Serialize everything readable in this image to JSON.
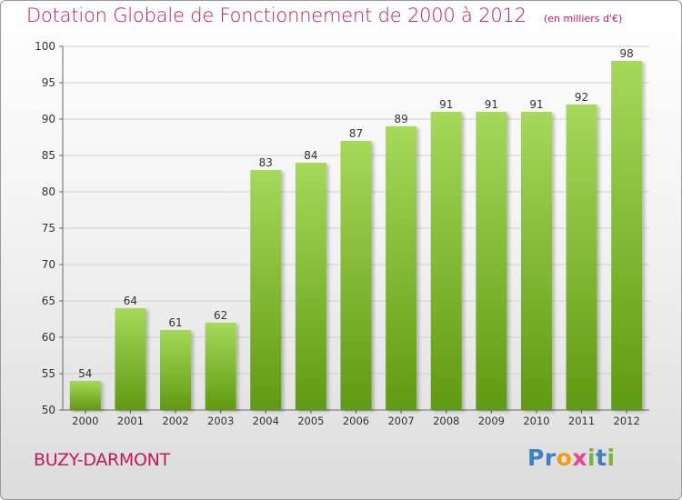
{
  "title": "Dotation Globale de Fonctionnement de 2000 à 2012",
  "unit_note": "(en milliers d'€)",
  "commune": "BUZY-DARMONT",
  "logo": {
    "text": "Proxiti",
    "letters": [
      {
        "ch": "P",
        "color": "#3a82c4"
      },
      {
        "ch": "r",
        "color": "#3a82c4"
      },
      {
        "ch": "o",
        "color": "#f39c12"
      },
      {
        "ch": "x",
        "color": "#e84393"
      },
      {
        "ch": "i",
        "color": "#7cb342"
      },
      {
        "ch": "t",
        "color": "#3a82c4"
      },
      {
        "ch": "i",
        "color": "#7cb342"
      }
    ]
  },
  "colors": {
    "bar_top": "#a6d85a",
    "bar_bottom": "#5f9a12",
    "accent": "#c2185b",
    "grid": "#d0d0d0"
  },
  "chart_data": {
    "type": "bar",
    "categories": [
      "2000",
      "2001",
      "2002",
      "2003",
      "2004",
      "2005",
      "2006",
      "2007",
      "2008",
      "2009",
      "2010",
      "2011",
      "2012"
    ],
    "values": [
      54,
      64,
      61,
      62,
      83,
      84,
      87,
      89,
      91,
      91,
      91,
      92,
      98
    ],
    "ylim": [
      50,
      100
    ],
    "yticks": [
      50,
      55,
      60,
      65,
      70,
      75,
      80,
      85,
      90,
      95,
      100
    ],
    "grid": true,
    "data_labels": true
  }
}
